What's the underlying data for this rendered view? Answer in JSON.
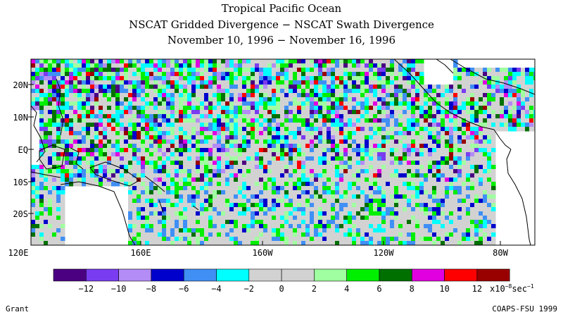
{
  "titles": {
    "line1": "Tropical Pacific Ocean",
    "line2": "NSCAT Gridded Divergence − NSCAT Swath Divergence",
    "line3": "November 10, 1996 − November 16, 1996"
  },
  "lat_labels": [
    "20N",
    "10N",
    "EQ",
    "10S",
    "20S"
  ],
  "lon_labels": [
    "120E",
    "160E",
    "160W",
    "120W",
    "80W"
  ],
  "colorbar": {
    "colors": [
      "#4b0082",
      "#7a3cf0",
      "#b38cf5",
      "#0000cc",
      "#3f8ff5",
      "#00ffff",
      "#d2d2d2",
      "#d2d2d2",
      "#a0ffa0",
      "#00ee00",
      "#007000",
      "#e000e0",
      "#ff0000",
      "#990000"
    ],
    "tick_labels": [
      "−12",
      "−10",
      "−8",
      "−6",
      "−4",
      "−2",
      "0",
      "2",
      "4",
      "6",
      "8",
      "10",
      "12"
    ],
    "units": "x10",
    "units_exp": "−8",
    "units_tail": "sec",
    "units_tail_exp": "−1"
  },
  "footer": {
    "left": "Grant",
    "right": "COAPS-FSU 1999"
  }
}
